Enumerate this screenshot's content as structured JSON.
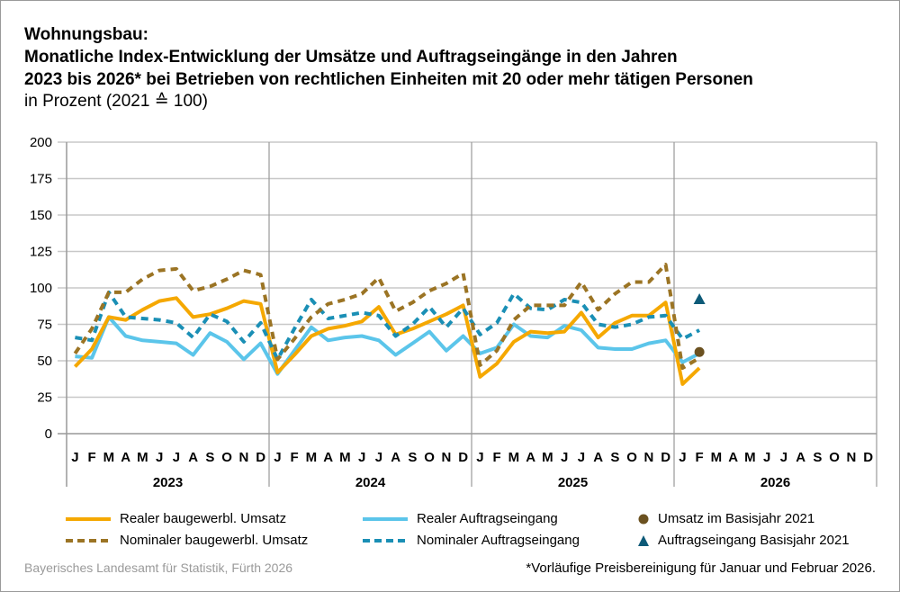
{
  "title_lines": [
    "Wohnungsbau:",
    "Monatliche Index-Entwicklung der Umsätze und Auftragseingänge in den Jahren",
    "2023 bis 2026* bei Betrieben von rechtlichen Einheiten mit 20 oder mehr tätigen Personen"
  ],
  "subtitle": "in Prozent (2021 ≙ 100)",
  "source": "Bayerisches Landesamt für Statistik, Fürth 2026",
  "footnote": "*Vorläufige Preisbereinigung für Januar und Februar 2026.",
  "chart_data": {
    "type": "line",
    "ylim": [
      0,
      200
    ],
    "yticks": [
      0,
      25,
      50,
      75,
      100,
      125,
      150,
      175,
      200
    ],
    "grid": "horizontal",
    "years": [
      "2023",
      "2024",
      "2025",
      "2026"
    ],
    "months": [
      "J",
      "F",
      "M",
      "A",
      "M",
      "J",
      "J",
      "A",
      "S",
      "O",
      "N",
      "D"
    ],
    "legend_placement": "bottom",
    "series": [
      {
        "name": "Realer baugewerbl. Umsatz",
        "color": "#f5a800",
        "style": "solid",
        "values": [
          46,
          58,
          80,
          78,
          85,
          91,
          93,
          80,
          82,
          86,
          91,
          89,
          42,
          54,
          67,
          72,
          74,
          77,
          87,
          68,
          72,
          77,
          82,
          88,
          39,
          48,
          63,
          70,
          69,
          70,
          83,
          66,
          76,
          81,
          81,
          90,
          34,
          45
        ]
      },
      {
        "name": "Nominaler baugewerbl. Umsatz",
        "color": "#9b7424",
        "style": "dashed",
        "values": [
          55,
          72,
          97,
          97,
          106,
          112,
          113,
          98,
          101,
          106,
          112,
          109,
          51,
          65,
          80,
          89,
          92,
          96,
          107,
          84,
          90,
          98,
          103,
          110,
          47,
          57,
          78,
          88,
          88,
          88,
          104,
          85,
          96,
          104,
          104,
          116,
          45,
          52
        ]
      },
      {
        "name": "Realer Auftragseingang",
        "color": "#5bc5ea",
        "style": "solid",
        "values": [
          53,
          52,
          80,
          67,
          64,
          63,
          62,
          54,
          69,
          63,
          51,
          62,
          41,
          57,
          73,
          64,
          66,
          67,
          64,
          54,
          62,
          70,
          57,
          67,
          55,
          59,
          75,
          67,
          66,
          74,
          71,
          59,
          58,
          58,
          62,
          64,
          49,
          55
        ]
      },
      {
        "name": "Nominaler Auftragseingang",
        "color": "#1a8fb5",
        "style": "dashed",
        "values": [
          66,
          64,
          97,
          80,
          79,
          78,
          76,
          66,
          82,
          77,
          63,
          76,
          51,
          72,
          92,
          79,
          81,
          83,
          81,
          67,
          75,
          87,
          73,
          86,
          68,
          76,
          96,
          86,
          85,
          92,
          90,
          75,
          73,
          75,
          80,
          81,
          65,
          71
        ]
      }
    ],
    "markers": [
      {
        "name": "Umsatz im Basisjahr 2021",
        "color": "#6b5120",
        "shape": "circle",
        "month": "F 2026",
        "value": 56
      },
      {
        "name": "Auftragseingang Basisjahr 2021",
        "color": "#0d5a78",
        "shape": "triangle",
        "month": "F 2026",
        "value": 92
      }
    ]
  }
}
